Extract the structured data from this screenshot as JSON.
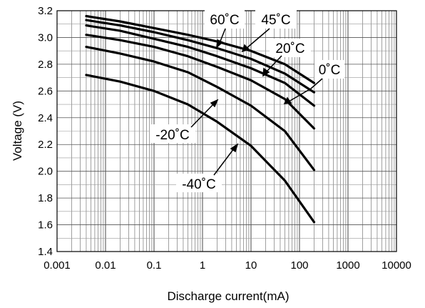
{
  "chart_data": {
    "type": "line",
    "title": "",
    "xlabel": "Discharge current(mA)",
    "ylabel": "Voltage (V)",
    "x_scale": "log",
    "xlim": [
      0.001,
      10000
    ],
    "ylim": [
      1.4,
      3.2
    ],
    "grid": true,
    "x_ticks": [
      "0.001",
      "0.01",
      "0.1",
      "1",
      "10",
      "100",
      "1000",
      "10000"
    ],
    "y_ticks": [
      "1.4",
      "1.6",
      "1.8",
      "2.0",
      "2.2",
      "2.4",
      "2.6",
      "2.8",
      "3.0",
      "3.2"
    ],
    "series": [
      {
        "name": "60°C",
        "x": [
          0.004,
          0.02,
          0.1,
          0.5,
          2,
          10,
          50,
          200
        ],
        "y": [
          3.16,
          3.12,
          3.07,
          3.02,
          2.97,
          2.9,
          2.8,
          2.66
        ]
      },
      {
        "name": "45°C",
        "x": [
          0.004,
          0.02,
          0.1,
          0.5,
          2,
          10,
          50,
          200
        ],
        "y": [
          3.13,
          3.09,
          3.04,
          2.98,
          2.92,
          2.84,
          2.73,
          2.59
        ]
      },
      {
        "name": "20°C",
        "x": [
          0.004,
          0.02,
          0.1,
          0.5,
          2,
          10,
          50,
          200
        ],
        "y": [
          3.09,
          3.05,
          2.99,
          2.93,
          2.86,
          2.77,
          2.66,
          2.49
        ]
      },
      {
        "name": "0°C",
        "x": [
          0.004,
          0.02,
          0.1,
          0.5,
          2,
          10,
          50,
          200
        ],
        "y": [
          3.02,
          2.98,
          2.93,
          2.86,
          2.78,
          2.68,
          2.54,
          2.32
        ]
      },
      {
        "name": "-20°C",
        "x": [
          0.004,
          0.02,
          0.1,
          0.5,
          2,
          10,
          50,
          200
        ],
        "y": [
          2.93,
          2.88,
          2.82,
          2.74,
          2.63,
          2.49,
          2.3,
          2.01
        ]
      },
      {
        "name": "-40°C",
        "x": [
          0.004,
          0.02,
          0.1,
          0.5,
          2,
          10,
          50,
          200
        ],
        "y": [
          2.72,
          2.67,
          2.6,
          2.5,
          2.37,
          2.19,
          1.93,
          1.62
        ]
      }
    ],
    "annotations": [
      "60˚C",
      "45˚C",
      "20˚C",
      "0˚C",
      "-20˚C",
      "-40˚C"
    ]
  }
}
